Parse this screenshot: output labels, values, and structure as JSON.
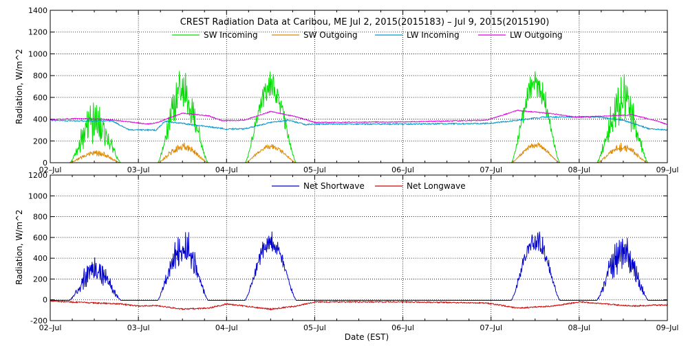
{
  "chart_data": [
    {
      "type": "line",
      "title": "CREST Radiation Data at Caribou, ME   Jul  2, 2015(2015183) – Jul  9, 2015(2015190)",
      "xlabel": "",
      "ylabel": "Radiation, W/m^2",
      "xlim": [
        0,
        7
      ],
      "ylim": [
        0,
        1400
      ],
      "yticks": [
        0,
        200,
        400,
        600,
        800,
        1000,
        1200,
        1400
      ],
      "grid": true,
      "legend_position": "top",
      "series": [
        {
          "name": "SW Incoming",
          "color": "#00dd00",
          "kind": "diurnal",
          "night": 0,
          "days": [
            {
              "start": 0.22,
              "end": 0.8,
              "peak": 620,
              "osc": 0.45
            },
            {
              "start": 1.22,
              "end": 1.79,
              "peak": 930,
              "osc": 0.35
            },
            {
              "start": 2.21,
              "end": 2.79,
              "peak": 880,
              "osc": 0.22
            },
            {
              "start": 5.23,
              "end": 5.78,
              "peak": 910,
              "osc": 0.22
            },
            {
              "start": 6.2,
              "end": 6.78,
              "peak": 870,
              "osc": 0.4
            }
          ]
        },
        {
          "name": "SW Outgoing",
          "color": "#dd8800",
          "kind": "diurnal",
          "night": 0,
          "days": [
            {
              "start": 0.22,
              "end": 0.8,
              "peak": 130,
              "osc": 0.35
            },
            {
              "start": 1.22,
              "end": 1.79,
              "peak": 200,
              "osc": 0.3
            },
            {
              "start": 2.21,
              "end": 2.79,
              "peak": 180,
              "osc": 0.2
            },
            {
              "start": 5.23,
              "end": 5.78,
              "peak": 195,
              "osc": 0.2
            },
            {
              "start": 6.2,
              "end": 6.78,
              "peak": 185,
              "osc": 0.3
            }
          ]
        },
        {
          "name": "LW Incoming",
          "color": "#0099cc",
          "kind": "keyframes",
          "noise": 6,
          "points": [
            [
              0,
              390
            ],
            [
              0.25,
              385
            ],
            [
              0.7,
              385
            ],
            [
              0.9,
              300
            ],
            [
              1.2,
              300
            ],
            [
              1.3,
              380
            ],
            [
              1.8,
              330
            ],
            [
              2.0,
              310
            ],
            [
              2.2,
              310
            ],
            [
              2.5,
              370
            ],
            [
              2.7,
              390
            ],
            [
              2.9,
              350
            ],
            [
              3.0,
              355
            ],
            [
              4.0,
              355
            ],
            [
              4.95,
              360
            ],
            [
              5.2,
              380
            ],
            [
              5.6,
              420
            ],
            [
              5.9,
              420
            ],
            [
              6.2,
              420
            ],
            [
              6.5,
              390
            ],
            [
              6.8,
              310
            ],
            [
              7.0,
              300
            ]
          ]
        },
        {
          "name": "LW Outgoing",
          "color": "#dd00dd",
          "kind": "keyframes",
          "noise": 4,
          "points": [
            [
              0,
              395
            ],
            [
              0.3,
              405
            ],
            [
              0.6,
              400
            ],
            [
              0.9,
              375
            ],
            [
              1.1,
              355
            ],
            [
              1.2,
              365
            ],
            [
              1.5,
              455
            ],
            [
              1.8,
              430
            ],
            [
              1.95,
              385
            ],
            [
              2.2,
              390
            ],
            [
              2.5,
              470
            ],
            [
              2.8,
              420
            ],
            [
              3.0,
              370
            ],
            [
              4.0,
              375
            ],
            [
              4.95,
              390
            ],
            [
              5.3,
              480
            ],
            [
              5.7,
              450
            ],
            [
              5.95,
              420
            ],
            [
              6.2,
              425
            ],
            [
              6.6,
              440
            ],
            [
              6.9,
              380
            ],
            [
              7.0,
              350
            ]
          ]
        }
      ]
    },
    {
      "type": "line",
      "title": "",
      "xlabel": "Date (EST)",
      "ylabel": "Radiation, W/m^2",
      "xlim": [
        0,
        7
      ],
      "ylim": [
        -200,
        1200
      ],
      "yticks": [
        -200,
        0,
        200,
        400,
        600,
        800,
        1000,
        1200
      ],
      "xticks": [
        "02–Jul",
        "03–Jul",
        "04–Jul",
        "05–Jul",
        "06–Jul",
        "07–Jul",
        "08–Jul",
        "09–Jul"
      ],
      "grid": true,
      "legend_position": "top",
      "series": [
        {
          "name": "Net Shortwave",
          "color": "#0000cc",
          "kind": "diurnal",
          "night": -5,
          "days": [
            {
              "start": 0.22,
              "end": 0.8,
              "peak": 480,
              "osc": 0.45
            },
            {
              "start": 1.22,
              "end": 1.79,
              "peak": 740,
              "osc": 0.35
            },
            {
              "start": 2.21,
              "end": 2.79,
              "peak": 700,
              "osc": 0.22
            },
            {
              "start": 5.23,
              "end": 5.78,
              "peak": 720,
              "osc": 0.22
            },
            {
              "start": 6.2,
              "end": 6.78,
              "peak": 680,
              "osc": 0.4
            }
          ]
        },
        {
          "name": "Net Longwave",
          "color": "#cc0000",
          "kind": "keyframes",
          "noise": 6,
          "points": [
            [
              0,
              -10
            ],
            [
              0.2,
              -20
            ],
            [
              0.5,
              -30
            ],
            [
              0.8,
              -40
            ],
            [
              1.0,
              -60
            ],
            [
              1.2,
              -55
            ],
            [
              1.5,
              -90
            ],
            [
              1.8,
              -80
            ],
            [
              2.0,
              -40
            ],
            [
              2.2,
              -60
            ],
            [
              2.5,
              -90
            ],
            [
              2.8,
              -60
            ],
            [
              3.0,
              -20
            ],
            [
              4.0,
              -20
            ],
            [
              4.95,
              -30
            ],
            [
              5.3,
              -80
            ],
            [
              5.7,
              -60
            ],
            [
              6.0,
              -20
            ],
            [
              6.3,
              -40
            ],
            [
              6.6,
              -60
            ],
            [
              6.9,
              -50
            ],
            [
              7.0,
              -50
            ]
          ]
        }
      ]
    }
  ]
}
